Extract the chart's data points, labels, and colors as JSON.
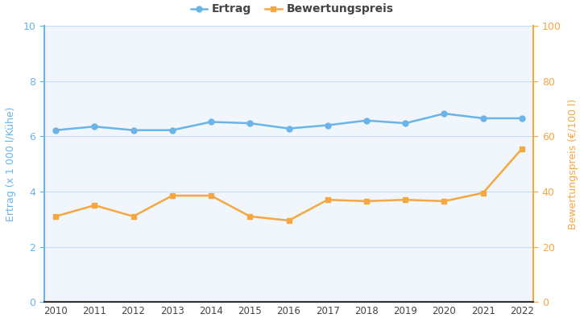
{
  "years": [
    2010,
    2011,
    2012,
    2013,
    2014,
    2015,
    2016,
    2017,
    2018,
    2019,
    2020,
    2021,
    2022
  ],
  "ertrag": [
    6.22,
    6.35,
    6.22,
    6.22,
    6.52,
    6.47,
    6.28,
    6.4,
    6.57,
    6.47,
    6.82,
    6.65,
    6.65
  ],
  "bewertungspreis": [
    31,
    35,
    31,
    38.5,
    38.5,
    31,
    29.5,
    37,
    36.5,
    37,
    36.5,
    39.5,
    55.5
  ],
  "ertrag_color": "#6ab4e8",
  "bewertungspreis_color": "#f5a742",
  "ylabel_left": "Ertrag (x 1 000 l/Kühe)",
  "ylabel_right": "Bewertungspreis (€/100 l)",
  "legend_ertrag": "Ertrag",
  "legend_bewertungspreis": "Bewertungspreis",
  "ylim_left": [
    0,
    10
  ],
  "ylim_right": [
    0,
    100
  ],
  "yticks_left": [
    0,
    2,
    4,
    6,
    8,
    10
  ],
  "yticks_right": [
    0,
    20,
    40,
    60,
    80,
    100
  ],
  "plot_bg_color": "#f0f6fc",
  "fig_bg_color": "#ffffff",
  "grid_color": "#c8ddf0",
  "text_color": "#444444",
  "spine_color_left": "#6ab4e8",
  "spine_color_right": "#f5a742",
  "xlim": [
    2009.7,
    2022.3
  ]
}
